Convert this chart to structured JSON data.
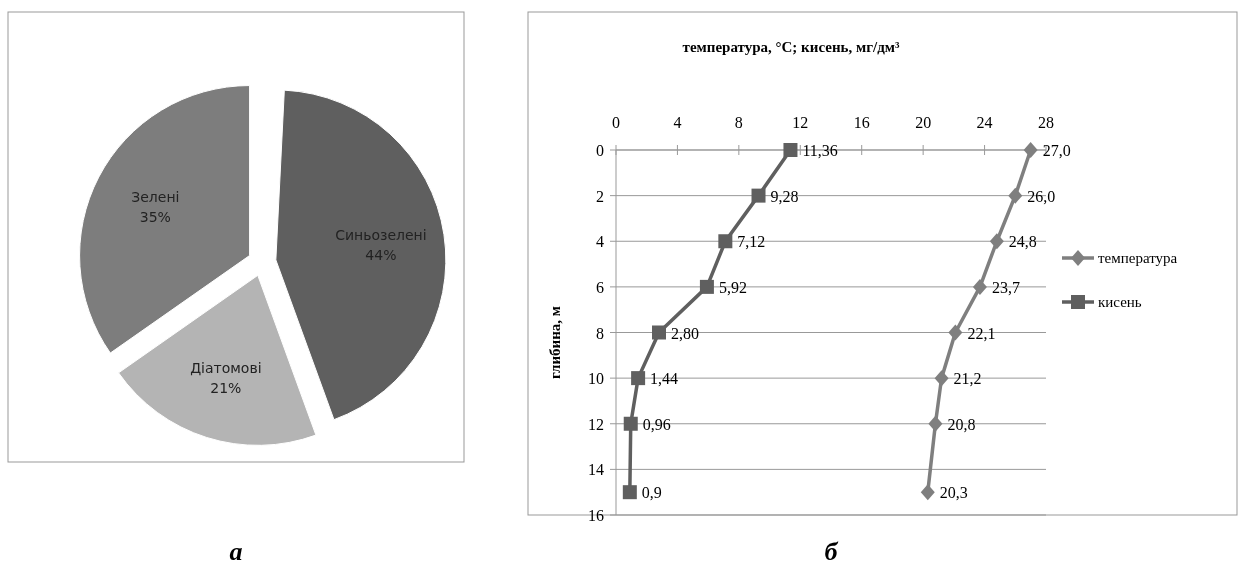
{
  "chart_data": [
    {
      "type": "pie",
      "categories": [
        "Синьозелені",
        "Діатомові",
        "Зелені"
      ],
      "values": [
        44,
        21,
        35
      ],
      "colors": [
        "#5f5f5f",
        "#b4b4b4",
        "#7d7d7d"
      ],
      "value_labels": [
        "44%",
        "21%",
        "35%"
      ],
      "annotations": [
        "а"
      ]
    },
    {
      "type": "line",
      "orientation": "horizontal",
      "xlabel": "температура, °С; кисень, мг/дм³",
      "ylabel": "глибина, м",
      "xlim": [
        0,
        28
      ],
      "xticks": [
        0,
        4,
        8,
        12,
        16,
        20,
        24,
        28
      ],
      "ylim": [
        16,
        0
      ],
      "yticks": [
        0,
        2,
        4,
        6,
        8,
        10,
        12,
        14,
        16
      ],
      "grid": "y",
      "legend": "right",
      "annotations": [
        "б"
      ],
      "series": [
        {
          "name": "температура",
          "color": "#7f7f7f",
          "marker": "diamond",
          "x": [
            0,
            2,
            4,
            6,
            8,
            10,
            12,
            15
          ],
          "values": [
            27.0,
            26.0,
            24.8,
            23.7,
            22.1,
            21.2,
            20.8,
            20.3
          ],
          "value_labels": [
            "27,0",
            "26,0",
            "24,8",
            "23,7",
            "22,1",
            "21,2",
            "20,8",
            "20,3"
          ]
        },
        {
          "name": "кисень",
          "color": "#5f5f5f",
          "marker": "square",
          "x": [
            0,
            2,
            4,
            6,
            8,
            10,
            12,
            15
          ],
          "values": [
            11.36,
            9.28,
            7.12,
            5.92,
            2.8,
            1.44,
            0.96,
            0.9
          ],
          "value_labels": [
            "11,36",
            "9,28",
            "7,12",
            "5,92",
            "2,80",
            "1,44",
            "0,96",
            "0,9"
          ]
        }
      ]
    }
  ]
}
